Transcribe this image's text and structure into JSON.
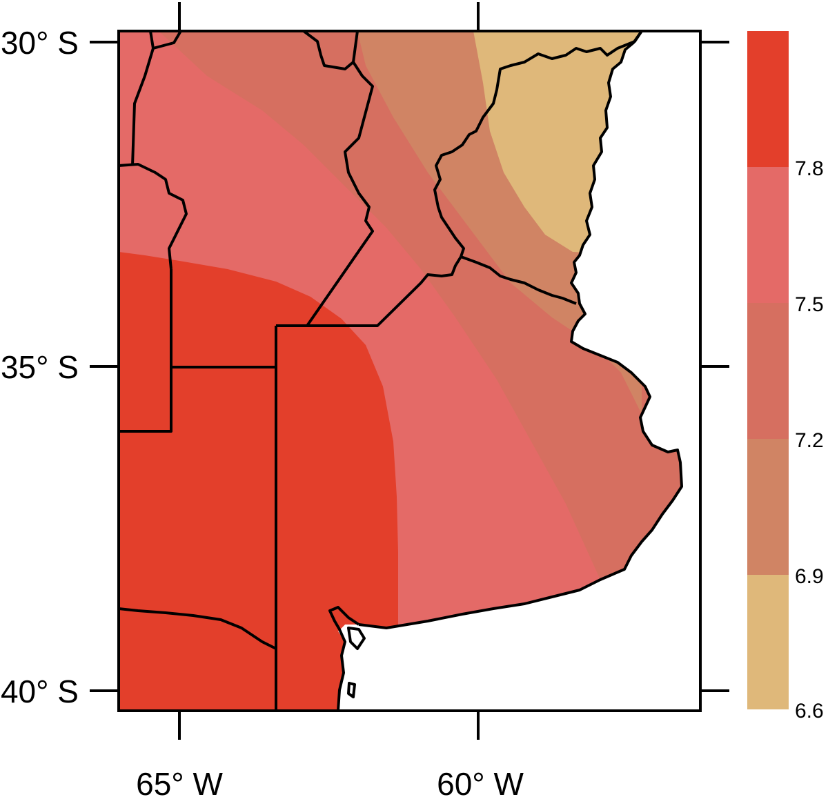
{
  "map": {
    "lat_ticks": [
      "30° S",
      "35° S",
      "40° S"
    ],
    "lon_ticks": [
      "65° W",
      "60° W"
    ],
    "colors": {
      "gt_7_8": "#e33f2b",
      "c_7_5_7_8": "#e46a67",
      "c_7_2_7_5": "#d66f60",
      "c_6_9_7_2": "#d08464",
      "c_6_6_6_9": "#dfb87a",
      "ocean": "#ffffff",
      "border": "#000000"
    }
  },
  "colorbar": {
    "labels": [
      "7.8",
      "7.5",
      "7.2",
      "6.9",
      "6.6"
    ],
    "colors": [
      "#e33f2b",
      "#e46a67",
      "#d66f60",
      "#d08464",
      "#dfb87a"
    ]
  }
}
